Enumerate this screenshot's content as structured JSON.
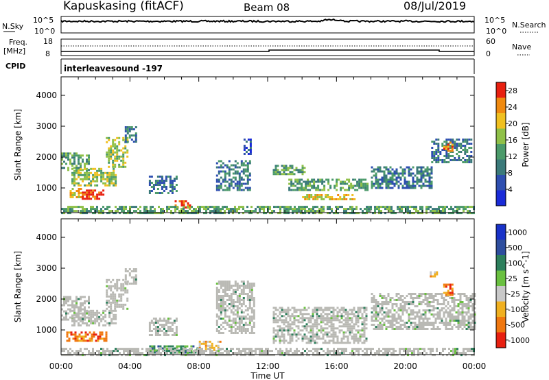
{
  "header": {
    "station": "Kapuskasing (fitACF)",
    "beam": "Beam 08",
    "date": "08/Jul/2019"
  },
  "top_panels": {
    "nsky_label": "N.Sky",
    "nsky_ticks": [
      "10^5",
      "10^0"
    ],
    "nsearch_label": "N.Search",
    "freq_label_line1": "Freq.",
    "freq_label_line2": "[MHz]",
    "freq_ticks": [
      "18",
      "8"
    ],
    "nave_label": "Nave",
    "nave_ticks": [
      "60",
      "0"
    ],
    "cpid_label": "CPID",
    "cpid_value": "interleavesound -197"
  },
  "colors": {
    "power_scale": [
      "#1a2bd8",
      "#2e4fb0",
      "#3b7a7a",
      "#4b9a6a",
      "#8fc048",
      "#f0c020",
      "#f08a10",
      "#e82010"
    ],
    "velocity_scale": [
      "#1832c8",
      "#2e4e9e",
      "#2d7f5c",
      "#6ac040",
      "#c8c8c8",
      "#f0b020",
      "#f07810",
      "#e82010"
    ],
    "ground_scatter": "#b9b9b4"
  },
  "chart_data": [
    {
      "type": "heatmap",
      "name": "power",
      "xlabel": "Time UT",
      "ylabel": "Slant Range [km]",
      "x_ticks": [
        "00:00",
        "04:00",
        "08:00",
        "12:00",
        "16:00",
        "20:00",
        "00:00"
      ],
      "xlim_hours": [
        0,
        24
      ],
      "ylim_km": [
        200,
        4600
      ],
      "y_ticks": [
        1000,
        2000,
        3000,
        4000
      ],
      "colorbar": {
        "label": "Power [dB]",
        "ticks": [
          4,
          8,
          12,
          16,
          20,
          24,
          28
        ],
        "range": [
          0,
          30
        ]
      },
      "echo_regions": [
        {
          "t0": 0.0,
          "t1": 1.6,
          "r0": 1550,
          "r1": 2150,
          "level": 3
        },
        {
          "t0": 0.6,
          "t1": 3.2,
          "r0": 1100,
          "r1": 1650,
          "level": 4
        },
        {
          "t0": 2.6,
          "t1": 3.8,
          "r0": 1700,
          "r1": 2650,
          "level": 4
        },
        {
          "t0": 0.5,
          "t1": 1.2,
          "r0": 700,
          "r1": 1000,
          "level": 5
        },
        {
          "t0": 1.2,
          "t1": 2.4,
          "r0": 650,
          "r1": 950,
          "level": 7
        },
        {
          "t0": 3.7,
          "t1": 4.4,
          "r0": 2500,
          "r1": 3000,
          "level": 2
        },
        {
          "t0": 6.6,
          "t1": 7.5,
          "r0": 350,
          "r1": 600,
          "level": 7
        },
        {
          "t0": 5.1,
          "t1": 6.7,
          "r0": 800,
          "r1": 1400,
          "level": 2
        },
        {
          "t0": 9.0,
          "t1": 11.0,
          "r0": 900,
          "r1": 1900,
          "level": 2
        },
        {
          "t0": 10.6,
          "t1": 11.0,
          "r0": 2100,
          "r1": 2600,
          "level": 1
        },
        {
          "t0": 12.3,
          "t1": 14.2,
          "r0": 1450,
          "r1": 1750,
          "level": 3
        },
        {
          "t0": 13.2,
          "t1": 17.8,
          "r0": 950,
          "r1": 1300,
          "level": 3
        },
        {
          "t0": 14.0,
          "t1": 17.0,
          "r0": 600,
          "r1": 800,
          "level": 5
        },
        {
          "t0": 18.0,
          "t1": 21.5,
          "r0": 1000,
          "r1": 1700,
          "level": 2
        },
        {
          "t0": 21.5,
          "t1": 23.8,
          "r0": 1800,
          "r1": 2600,
          "level": 2
        },
        {
          "t0": 22.2,
          "t1": 22.7,
          "r0": 2200,
          "r1": 2500,
          "level": 6
        },
        {
          "t0": 0.0,
          "t1": 24.0,
          "r0": 200,
          "r1": 420,
          "level": 3
        }
      ]
    },
    {
      "type": "heatmap",
      "name": "velocity",
      "xlabel": "Time UT",
      "ylabel": "Slant Range [km]",
      "x_ticks": [
        "00:00",
        "04:00",
        "08:00",
        "12:00",
        "16:00",
        "20:00",
        "00:00"
      ],
      "xlim_hours": [
        0,
        24
      ],
      "ylim_km": [
        200,
        4600
      ],
      "y_ticks": [
        1000,
        2000,
        3000,
        4000
      ],
      "colorbar": {
        "label": "Velocity [m s^-1]",
        "tick_labels": [
          "1000",
          "500",
          "100",
          "25",
          "-25",
          "-100",
          "-500",
          "-1000"
        ]
      },
      "echo_regions": [
        {
          "t0": 0.0,
          "t1": 1.6,
          "r0": 1300,
          "r1": 2100,
          "class": "ground"
        },
        {
          "t0": 0.6,
          "t1": 3.2,
          "r0": 1150,
          "r1": 1650,
          "class": "ground"
        },
        {
          "t0": 2.6,
          "t1": 3.8,
          "r0": 1700,
          "r1": 2650,
          "class": "ground"
        },
        {
          "t0": 3.7,
          "t1": 4.4,
          "r0": 2500,
          "r1": 3000,
          "class": "ground"
        },
        {
          "t0": 0.3,
          "t1": 2.6,
          "r0": 650,
          "r1": 950,
          "class": "-500"
        },
        {
          "t0": 5.1,
          "t1": 6.7,
          "r0": 800,
          "r1": 1400,
          "class": "ground"
        },
        {
          "t0": 8.0,
          "t1": 9.2,
          "r0": 380,
          "r1": 650,
          "class": "-100"
        },
        {
          "t0": 9.0,
          "t1": 11.2,
          "r0": 900,
          "r1": 2600,
          "class": "ground"
        },
        {
          "t0": 12.3,
          "t1": 17.8,
          "r0": 600,
          "r1": 1750,
          "class": "ground"
        },
        {
          "t0": 18.0,
          "t1": 24.0,
          "r0": 1000,
          "r1": 2200,
          "class": "ground"
        },
        {
          "t0": 21.3,
          "t1": 21.8,
          "r0": 2700,
          "r1": 2900,
          "class": "-100"
        },
        {
          "t0": 22.2,
          "t1": 22.7,
          "r0": 2150,
          "r1": 2500,
          "class": "-500"
        },
        {
          "t0": 5.0,
          "t1": 8.0,
          "r0": 250,
          "r1": 500,
          "class": "100"
        },
        {
          "t0": 0.0,
          "t1": 24.0,
          "r0": 200,
          "r1": 420,
          "class": "ground"
        }
      ]
    }
  ]
}
